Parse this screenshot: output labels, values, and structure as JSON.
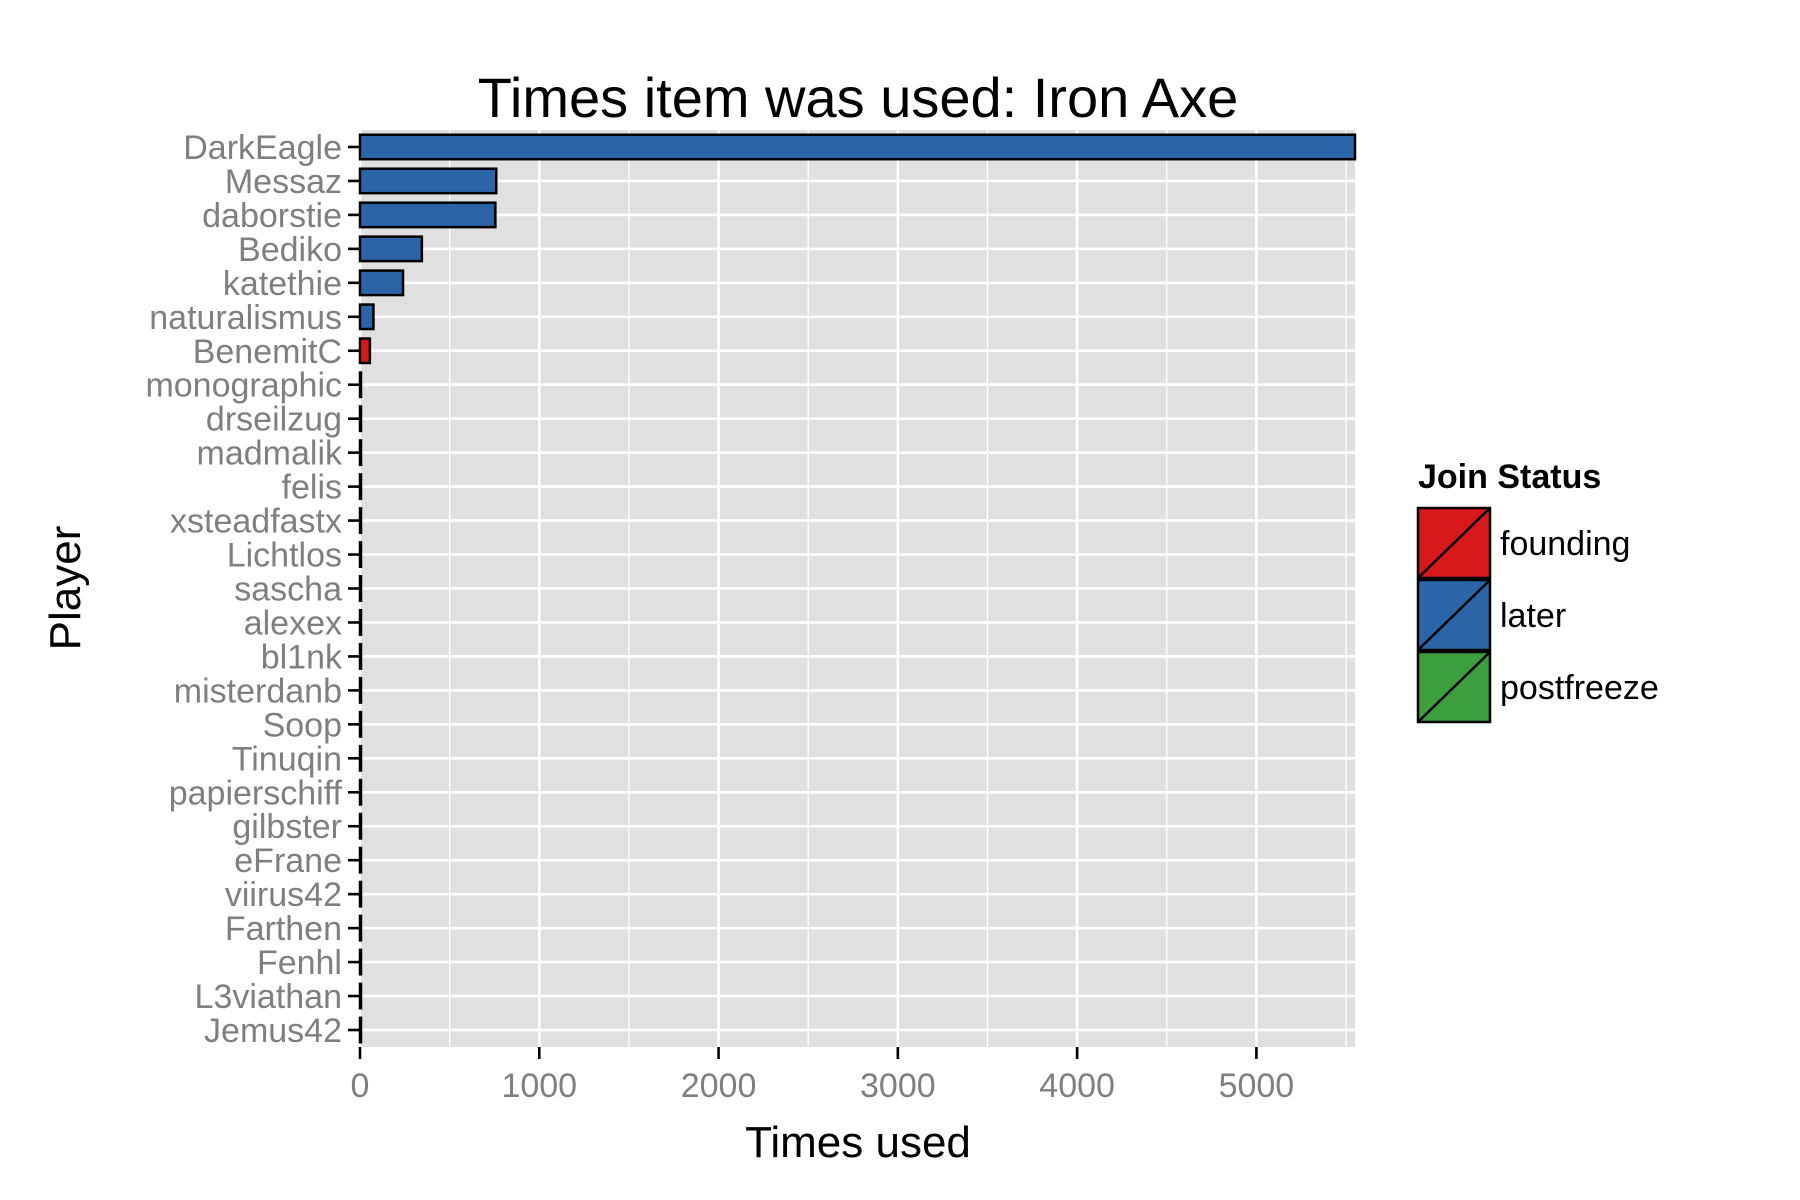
{
  "chart_data": {
    "type": "bar",
    "orientation": "horizontal",
    "title": "Times item was used: Iron Axe",
    "xlabel": "Times used",
    "ylabel": "Player",
    "xlim": [
      0,
      5550
    ],
    "xticks": [
      0,
      1000,
      2000,
      3000,
      4000,
      5000
    ],
    "grid": true,
    "legend": {
      "title": "Join Status",
      "position": "right",
      "entries": [
        {
          "label": "founding",
          "color": "#d7191c"
        },
        {
          "label": "later",
          "color": "#2b65a8"
        },
        {
          "label": "postfreeze",
          "color": "#3d9e3d"
        }
      ]
    },
    "categories": [
      "DarkEagle",
      "Messaz",
      "daborstie",
      "Bediko",
      "katethie",
      "naturalismus",
      "BenemitC",
      "monographic",
      "drseilzug",
      "madmalik",
      "felis",
      "xsteadfastx",
      "Lichtlos",
      "sascha",
      "alexex",
      "bl1nk",
      "misterdanb",
      "Soop",
      "Tinuqin",
      "papierschiff",
      "gilbster",
      "eFrane",
      "viirus42",
      "Farthen",
      "Fenhl",
      "L3viathan",
      "Jemus42"
    ],
    "values": [
      5550,
      760,
      755,
      345,
      240,
      75,
      55,
      5,
      4,
      4,
      3,
      3,
      3,
      3,
      2,
      2,
      2,
      2,
      2,
      2,
      1,
      1,
      1,
      1,
      1,
      1,
      1
    ],
    "status": [
      "later",
      "later",
      "later",
      "later",
      "later",
      "later",
      "founding",
      "later",
      "later",
      "later",
      "later",
      "later",
      "later",
      "later",
      "later",
      "later",
      "later",
      "later",
      "later",
      "later",
      "later",
      "later",
      "later",
      "later",
      "later",
      "later",
      "later"
    ]
  },
  "colors": {
    "panel_background": "#e0e0e0",
    "grid": "#ffffff",
    "bar_outline": "#000000"
  }
}
